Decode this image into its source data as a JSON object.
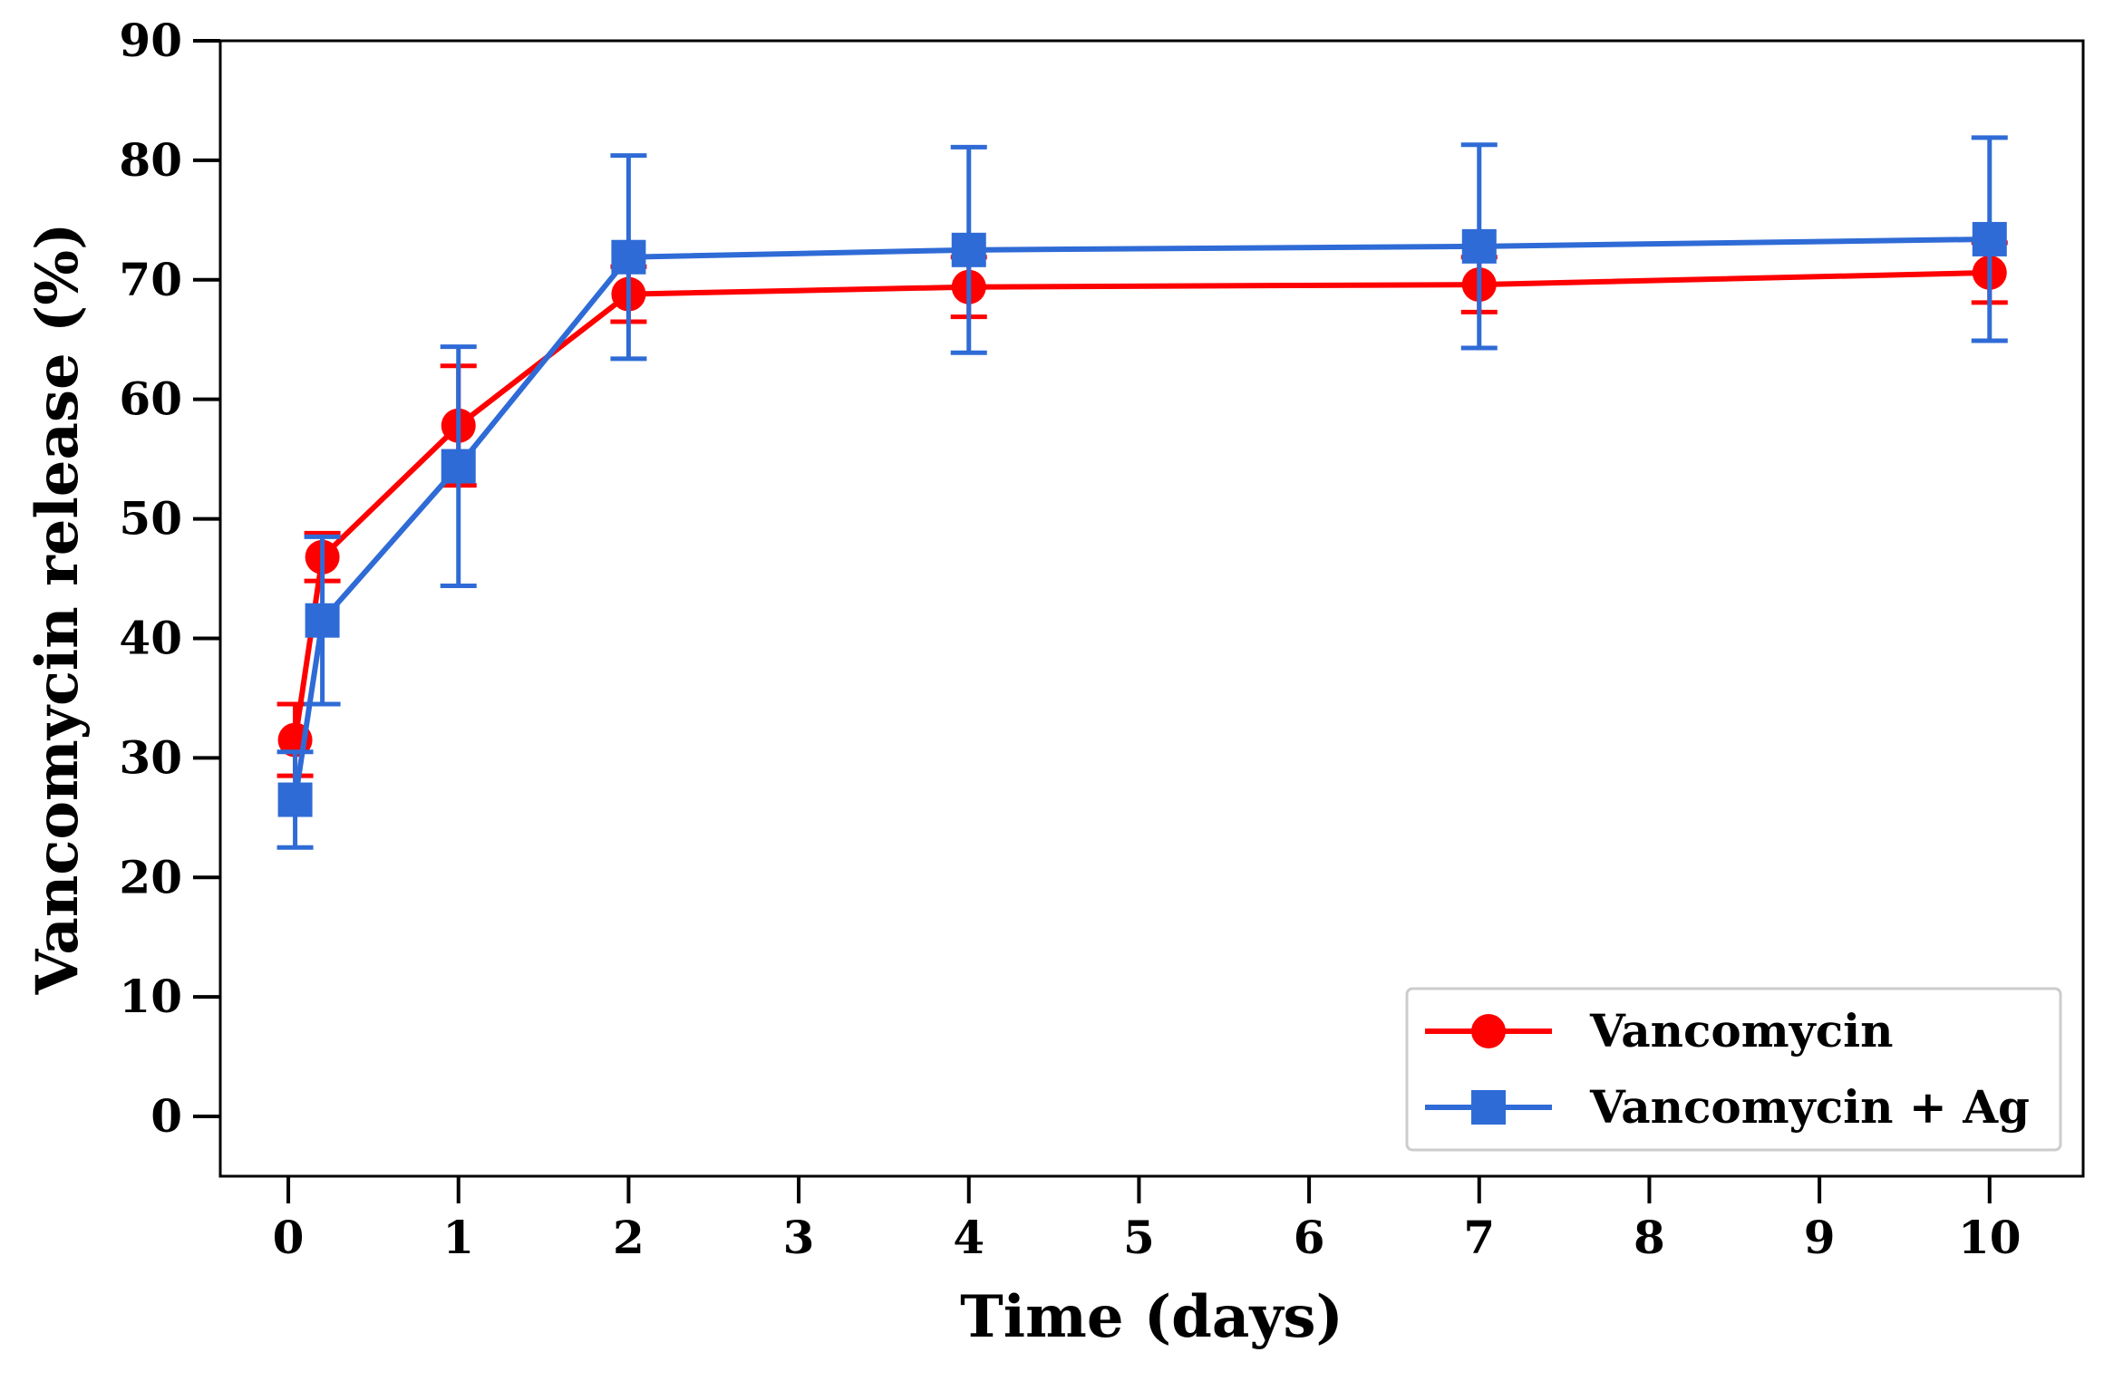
{
  "chart_data": {
    "type": "line",
    "title": "",
    "xlabel": "Time (days)",
    "ylabel": "Vancomycin release (%)",
    "ylim": [
      -5,
      90
    ],
    "y_ticks": [
      0,
      10,
      20,
      30,
      40,
      50,
      60,
      70,
      80,
      90
    ],
    "x_ticks": [
      {
        "label": "0",
        "x": 0
      },
      {
        "label": "1",
        "x": 1
      },
      {
        "label": "2",
        "x": 2
      },
      {
        "label": "3",
        "x": 3
      },
      {
        "label": "4",
        "x": 4
      },
      {
        "label": "5",
        "x": 5
      },
      {
        "label": "6",
        "x": 6
      },
      {
        "label": "7",
        "x": 7
      },
      {
        "label": "8",
        "x": 8
      },
      {
        "label": "9",
        "x": 9
      },
      {
        "label": "10",
        "x": 10
      }
    ],
    "x_axis_note": "Tick labels 0,1,2,3,4,5,6,7,8,9,10 at equal spacing; positions are tick indices.",
    "xlim": [
      -0.4,
      10.55
    ],
    "grid": false,
    "legend_position": "bottom-right",
    "series": [
      {
        "name": "Vancomycin",
        "color": "#ff0000",
        "marker": "circle",
        "x": [
          0.04,
          0.2,
          1,
          2,
          4,
          7,
          10
        ],
        "y": [
          31.5,
          46.8,
          57.8,
          68.8,
          69.4,
          69.6,
          70.6
        ],
        "yerr": [
          3.0,
          2.0,
          5.0,
          2.3,
          2.5,
          2.3,
          2.5
        ]
      },
      {
        "name": "Vancomycin + Ag",
        "color": "#2f6bd6",
        "marker": "square",
        "x": [
          0.04,
          0.2,
          1,
          2,
          4,
          7,
          10
        ],
        "y": [
          26.5,
          41.5,
          54.4,
          71.9,
          72.5,
          72.8,
          73.4
        ],
        "yerr": [
          4.0,
          7.0,
          10.0,
          8.5,
          8.6,
          8.5,
          8.5
        ]
      }
    ]
  },
  "colors": {
    "frame": "#000000",
    "background": "#ffffff"
  }
}
